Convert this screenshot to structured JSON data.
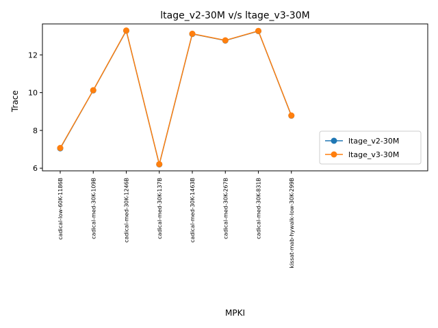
{
  "chart_data": {
    "type": "line",
    "title": "ltage_v2-30M v/s ltage_v3-30M",
    "xlabel": "MPKI",
    "ylabel": "Trace",
    "categories": [
      "cadical-low-60K-1186B",
      "cadical-med-30K-109B",
      "cadical-med-30K-1246B",
      "cadical-med-30K-137B",
      "cadical-med-30K-1463B",
      "cadical-med-30K-267B",
      "cadical-med-30K-831B",
      "kissat-mab-hywalk-low-30K-299B"
    ],
    "series": [
      {
        "name": "ltage_v2-30M",
        "color": "#1f77b4",
        "marker": "circle",
        "values": [
          7.05,
          10.12,
          13.28,
          6.2,
          13.11,
          12.76,
          13.26,
          8.78
        ]
      },
      {
        "name": "ltage_v3-30M",
        "color": "#ff7f0e",
        "marker": "circle",
        "values": [
          7.07,
          10.13,
          13.29,
          6.21,
          13.12,
          12.77,
          13.27,
          8.79
        ]
      }
    ],
    "ylim": [
      5.86,
      13.64
    ],
    "yticks": [
      6,
      8,
      10,
      12
    ],
    "grid": false,
    "legend_position": "lower right"
  }
}
